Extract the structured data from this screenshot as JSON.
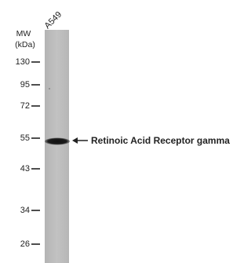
{
  "lane_label": "A549",
  "mw_label": "MW",
  "mw_unit": "(kDa)",
  "markers": [
    130,
    95,
    72,
    55,
    43,
    34,
    26
  ],
  "band_label": "Retinoic Acid Receptor gamma"
}
